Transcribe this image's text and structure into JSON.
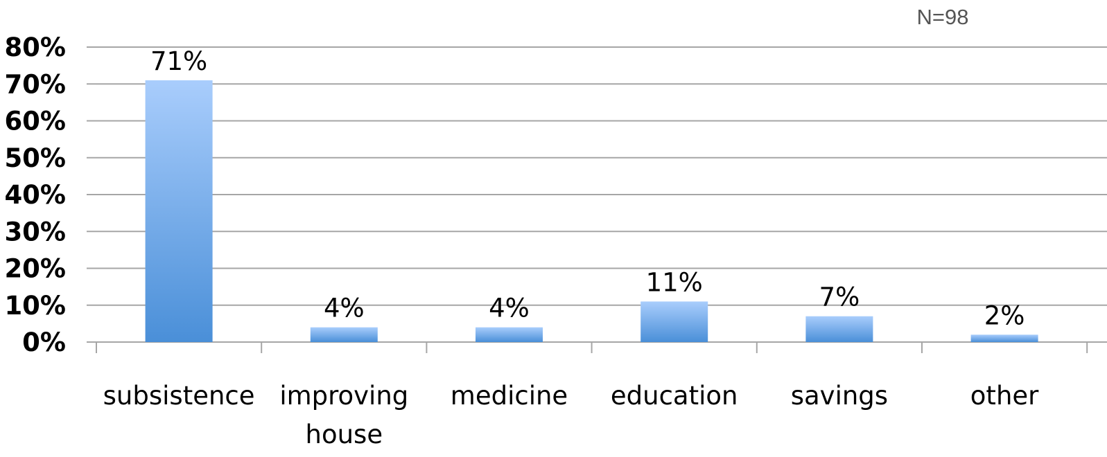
{
  "chart_data": {
    "type": "bar",
    "categories": [
      "subsistence",
      "improving house",
      "medicine",
      "education",
      "savings",
      "other"
    ],
    "category_lines": [
      [
        "subsistence"
      ],
      [
        "improving",
        "house"
      ],
      [
        "medicine"
      ],
      [
        "education"
      ],
      [
        "savings"
      ],
      [
        "other"
      ]
    ],
    "values": [
      71,
      4,
      4,
      11,
      7,
      2
    ],
    "data_labels": [
      "71%",
      "4%",
      "4%",
      "11%",
      "7%",
      "2%"
    ],
    "note": "N=98",
    "ylim": [
      0,
      80
    ],
    "yticks": [
      0,
      10,
      20,
      30,
      40,
      50,
      60,
      70,
      80
    ],
    "ytick_labels": [
      "0%",
      "10%",
      "20%",
      "30%",
      "40%",
      "50%",
      "60%",
      "70%",
      "80%"
    ],
    "grid": true,
    "legend": "none",
    "colors": {
      "bar_top": "#a9cdfc",
      "bar_bottom": "#4a8fd8",
      "grid": "#a6a6a6",
      "axis": "#a6a6a6"
    }
  }
}
